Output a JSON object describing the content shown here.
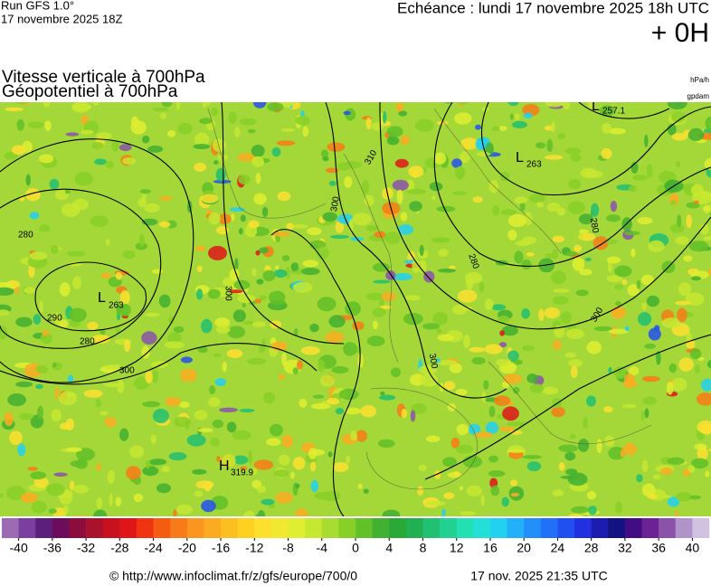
{
  "header": {
    "run": "Run GFS 1.0°",
    "run_date": "17 novembre 2025 18Z",
    "valid": "Echéance : lundi 17 novembre 2025 18h UTC",
    "lead": "+ 0H",
    "title1": "Vitesse verticale à 700hPa",
    "title2": "Géopotentiel à 700hPa",
    "unit1": "hPa/h",
    "unit2": "gpdam"
  },
  "map": {
    "centers": [
      {
        "letter": "L",
        "value": 257.1
      },
      {
        "letter": "L",
        "value": 263
      },
      {
        "letter": "L",
        "value": 263
      },
      {
        "letter": "H",
        "value": 319.9
      }
    ],
    "contour_labels": [
      "280",
      "290",
      "300",
      "280",
      "300",
      "300",
      "300",
      "280",
      "280",
      "300",
      "310"
    ]
  },
  "colorbar": {
    "lim": [
      -42,
      42
    ],
    "ticks": [
      -40,
      -36,
      -32,
      -28,
      -24,
      -20,
      -16,
      -12,
      -8,
      -4,
      0,
      4,
      8,
      12,
      16,
      20,
      24,
      28,
      32,
      36,
      40
    ],
    "colors": [
      "#9d6ab4",
      "#7b3f9f",
      "#5c1f7c",
      "#6d0c5d",
      "#8c0c3e",
      "#a9122b",
      "#c8111f",
      "#e0151a",
      "#f03311",
      "#f55c11",
      "#f87b19",
      "#fa9520",
      "#fbab21",
      "#fcbf21",
      "#fdd022",
      "#fde02f",
      "#f1e831",
      "#dfee31",
      "#c7e831",
      "#a8dc30",
      "#88d028",
      "#62c028",
      "#42b030",
      "#2aa838",
      "#22b052",
      "#22c072",
      "#22d092",
      "#22e0b2",
      "#22e0d8",
      "#22d0f0",
      "#22b0f8",
      "#2290f8",
      "#2270f8",
      "#2250f0",
      "#2230e0",
      "#1c1cb0",
      "#121282",
      "#420c82",
      "#6c2292",
      "#8c52aa",
      "#b292ca",
      "#d2c2e2"
    ]
  },
  "footer": {
    "url": "© http://www.infoclimat.fr/z/gfs/europe/700/0",
    "generated": "17 nov. 2025 21:35 UTC"
  }
}
